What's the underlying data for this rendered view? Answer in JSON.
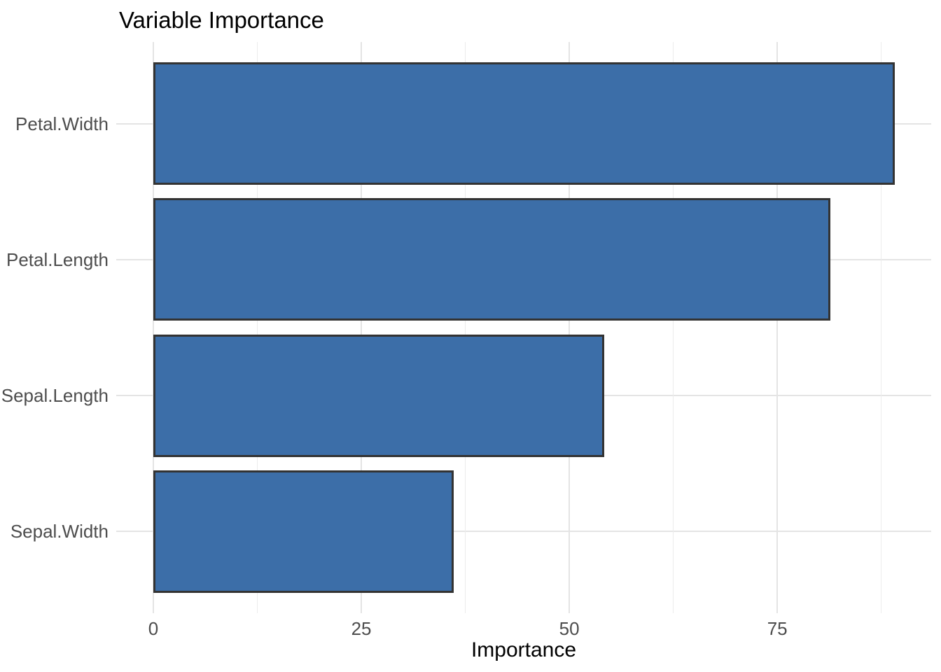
{
  "chart": {
    "title": "Variable Importance",
    "x_axis_title": "Importance"
  },
  "chart_data": {
    "type": "bar",
    "orientation": "horizontal",
    "title": "Variable Importance",
    "xlabel": "Importance",
    "ylabel": "",
    "categories": [
      "Petal.Width",
      "Petal.Length",
      "Sepal.Length",
      "Sepal.Width"
    ],
    "values": [
      89.1,
      81.4,
      54.2,
      36.1
    ],
    "x_ticks": [
      0,
      25,
      50,
      75
    ],
    "x_minor_ticks": [
      12.5,
      37.5,
      62.5,
      87.5
    ],
    "xlim": [
      -4.46,
      93.5
    ],
    "grid": true,
    "legend": "none",
    "colors": {
      "bar_fill": "#3C6EA8",
      "bar_border": "#333333",
      "grid_major": "#E4E4E4",
      "grid_minor": "#ECECEC",
      "axis_text": "#4D4D4D",
      "title_text": "#000000",
      "background": "#FFFFFF"
    }
  }
}
